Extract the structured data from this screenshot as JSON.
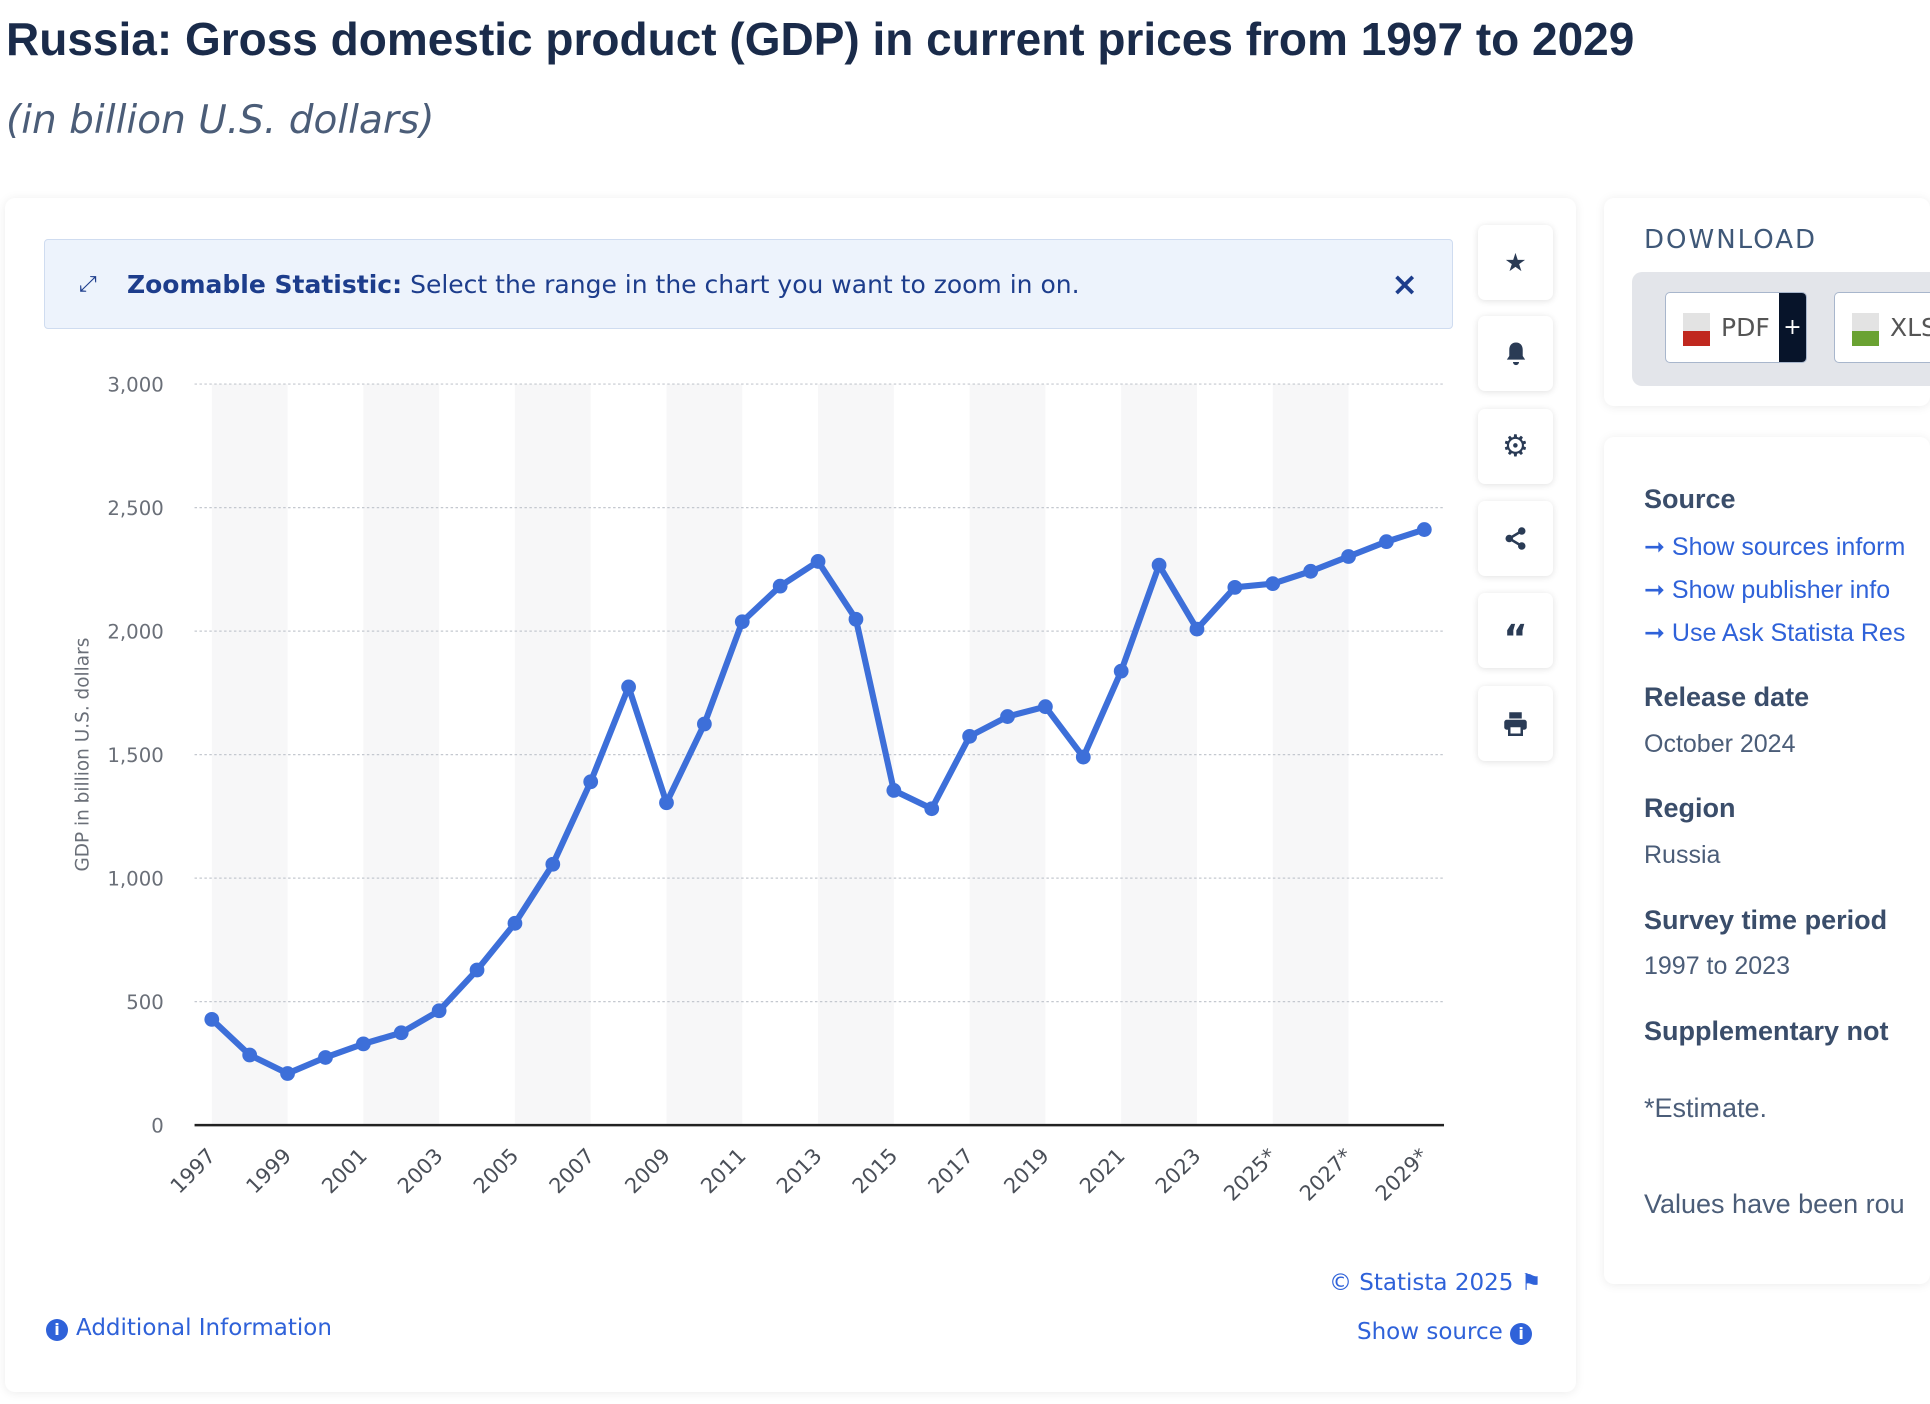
{
  "header": {
    "title": "Russia: Gross domestic product (GDP) in current prices from 1997 to 2029",
    "subtitle": "(in billion U.S. dollars)"
  },
  "banner": {
    "bold": "Zoomable Statistic:",
    "text": "Select the range in the chart you want to zoom in on.",
    "close": "×"
  },
  "toolbar": {
    "icons": [
      "star-icon",
      "bell-icon",
      "gear-icon",
      "share-icon",
      "quote-icon",
      "print-icon"
    ]
  },
  "footer": {
    "copyright": "© Statista 2025",
    "show_source": "Show source",
    "additional_info": "Additional Information"
  },
  "download": {
    "heading": "DOWNLOAD",
    "pdf": "PDF",
    "pdf_plus": "+",
    "xls": "XLS"
  },
  "details": {
    "source_heading": "Source",
    "links": [
      "Show sources inform",
      "Show publisher info",
      "Use Ask Statista Res"
    ],
    "release_heading": "Release date",
    "release_value": "October 2024",
    "region_heading": "Region",
    "region_value": "Russia",
    "survey_heading": "Survey time period",
    "survey_value": "1997 to 2023",
    "supp_heading": "Supplementary not",
    "estimate_note": "*Estimate.",
    "rounded_note": "Values have been rou"
  },
  "colors": {
    "line": "#3d6fd9",
    "accent": "#2f62d9"
  },
  "chart_data": {
    "type": "line",
    "ylabel": "GDP in billion U.S. dollars",
    "ylim": [
      0,
      3000
    ],
    "yticks": [
      0,
      500,
      1000,
      1500,
      2000,
      2500,
      3000
    ],
    "ytick_labels": [
      "0",
      "500",
      "1,000",
      "1,500",
      "2,000",
      "2,500",
      "3,000"
    ],
    "grid": true,
    "x": [
      1997,
      1998,
      1999,
      2000,
      2001,
      2002,
      2003,
      2004,
      2005,
      2006,
      2007,
      2008,
      2009,
      2010,
      2011,
      2012,
      2013,
      2014,
      2015,
      2016,
      2017,
      2018,
      2019,
      2020,
      2021,
      2022,
      2023,
      2024,
      2025,
      2026,
      2027,
      2028,
      2029
    ],
    "xtick_labels": [
      "1997",
      "1999",
      "2001",
      "2003",
      "2005",
      "2007",
      "2009",
      "2011",
      "2013",
      "2015",
      "2017",
      "2019",
      "2021",
      "2023",
      "2025*",
      "2027*",
      "2029*"
    ],
    "series": [
      {
        "values": [
          428,
          284,
          209,
          274,
          329,
          374,
          463,
          628,
          817,
          1056,
          1390,
          1774,
          1305,
          1624,
          2038,
          2182,
          2282,
          2048,
          1355,
          1281,
          1574,
          1654,
          1694,
          1490,
          1838,
          2267,
          2008,
          2177,
          2192,
          2242,
          2302,
          2362,
          2411
        ]
      }
    ]
  }
}
